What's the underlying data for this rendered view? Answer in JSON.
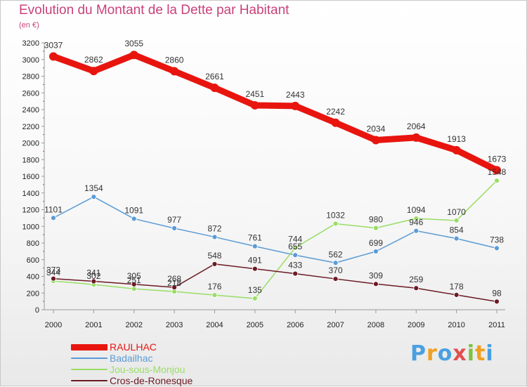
{
  "header": {
    "title": "Evolution du Montant de la Dette par Habitant",
    "unit": "(en €)"
  },
  "logo": {
    "letters": [
      {
        "ch": "P",
        "color": "#4aa0e0"
      },
      {
        "ch": "r",
        "color": "#f0a020"
      },
      {
        "ch": "o",
        "color": "#4aa0e0"
      },
      {
        "ch": "x",
        "color": "#e05050"
      },
      {
        "ch": "i",
        "color": "#80c040"
      },
      {
        "ch": "t",
        "color": "#f0a020"
      },
      {
        "ch": "i",
        "color": "#4aa0e0"
      }
    ]
  },
  "chart_data": {
    "type": "line",
    "title": "Evolution du Montant de la Dette par Habitant",
    "subtitle": "(en €)",
    "xlabel": "",
    "ylabel": "",
    "x": [
      "2000",
      "2001",
      "2002",
      "2003",
      "2004",
      "2005",
      "2006",
      "2007",
      "2008",
      "2009",
      "2010",
      "2011"
    ],
    "ylim": [
      0,
      3200
    ],
    "yticks": [
      0,
      200,
      400,
      600,
      800,
      1000,
      1200,
      1400,
      1600,
      1800,
      2000,
      2200,
      2400,
      2600,
      2800,
      3000,
      3200
    ],
    "grid": false,
    "legend_position": "bottom-left",
    "series": [
      {
        "name": "RAULHAC",
        "color": "#e8150f",
        "line_width": 9,
        "marker_r": 6,
        "values": [
          3037,
          2862,
          3055,
          2860,
          2661,
          2451,
          2443,
          2242,
          2034,
          2064,
          1913,
          1673
        ]
      },
      {
        "name": "Badailhac",
        "color": "#5b9bd5",
        "line_width": 1.5,
        "marker_r": 3.5,
        "values": [
          1101,
          1354,
          1091,
          977,
          872,
          761,
          655,
          562,
          699,
          946,
          854,
          738
        ]
      },
      {
        "name": "Jou-sous-Monjou",
        "color": "#99dd66",
        "line_width": 1.5,
        "marker_r": 3.5,
        "values": [
          344,
          302,
          251,
          218,
          176,
          135,
          744,
          1032,
          980,
          1094,
          1070,
          1548
        ]
      },
      {
        "name": "Cros-de-Ronesque",
        "color": "#6b1a24",
        "line_width": 1.5,
        "marker_r": 3.5,
        "values": [
          373,
          341,
          305,
          268,
          548,
          491,
          433,
          370,
          309,
          259,
          178,
          98
        ]
      }
    ],
    "data_labels": [
      {
        "series": 0,
        "text": [
          "3037",
          "2862",
          "3055",
          "2860",
          "2661",
          "2451",
          "2443",
          "2242",
          "2034",
          "2064",
          "1913",
          "1673"
        ]
      },
      {
        "series": 1,
        "text": [
          "1101",
          "1354",
          "1091",
          "977",
          "872",
          "761",
          "655",
          "562",
          "699",
          "946",
          "854",
          "738"
        ]
      },
      {
        "series": 2,
        "text": [
          "344",
          "302",
          "251",
          "218",
          "176",
          "135",
          "744",
          "1032",
          "980",
          "1094",
          "1070",
          "1548"
        ]
      },
      {
        "series": 3,
        "text": [
          "373",
          "341",
          "305",
          "268",
          "548",
          "491",
          "433",
          "370",
          "309",
          "259",
          "178",
          "98"
        ]
      }
    ]
  }
}
